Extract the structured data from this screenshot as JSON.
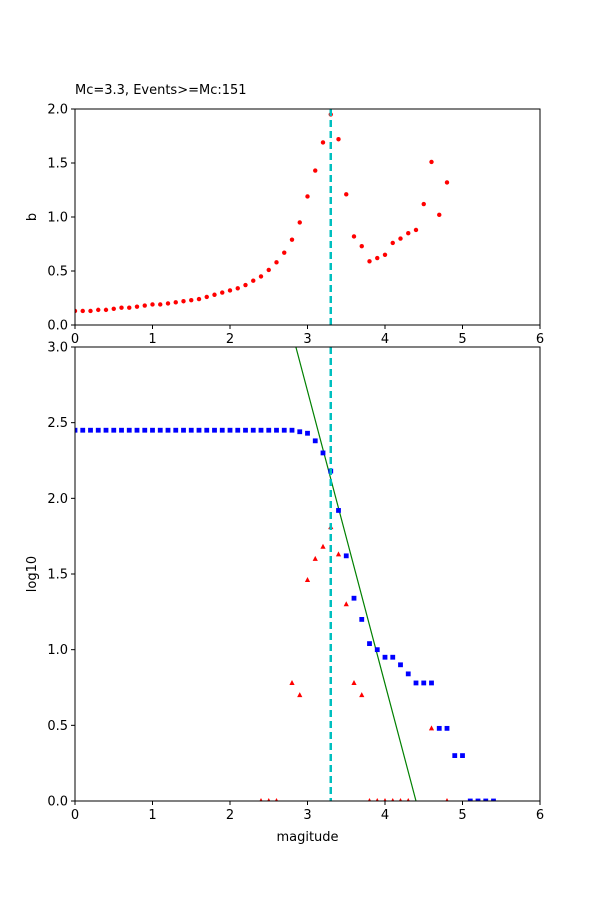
{
  "chart_data": [
    {
      "type": "scatter",
      "title": "Mc=3.3, Events>=Mc:151",
      "xlabel": "",
      "ylabel": "b",
      "xlim": [
        0,
        6
      ],
      "ylim": [
        0,
        2
      ],
      "xticks": [
        "0",
        "1",
        "2",
        "3",
        "4",
        "5",
        "6"
      ],
      "yticks": [
        "0.0",
        "0.5",
        "1.0",
        "1.5",
        "2.0"
      ],
      "grid": false,
      "colors": {
        "points": "#ff0000",
        "mc_line": "#00bfbf"
      },
      "mc_line": 3.3,
      "series": [
        {
          "marker": "circle",
          "x": [
            0.0,
            0.1,
            0.2,
            0.3,
            0.4,
            0.5,
            0.6,
            0.7,
            0.8,
            0.9,
            1.0,
            1.1,
            1.2,
            1.3,
            1.4,
            1.5,
            1.6,
            1.7,
            1.8,
            1.9,
            2.0,
            2.1,
            2.2,
            2.3,
            2.4,
            2.5,
            2.6,
            2.7,
            2.8,
            2.9,
            3.0,
            3.1,
            3.2,
            3.3,
            3.4,
            3.5,
            3.6,
            3.7,
            3.8,
            3.9,
            4.0,
            4.1,
            4.2,
            4.3,
            4.4,
            4.5,
            4.6,
            4.7,
            4.8
          ],
          "y": [
            0.13,
            0.13,
            0.13,
            0.14,
            0.14,
            0.15,
            0.16,
            0.16,
            0.17,
            0.18,
            0.19,
            0.19,
            0.2,
            0.21,
            0.22,
            0.23,
            0.24,
            0.26,
            0.28,
            0.3,
            0.32,
            0.34,
            0.37,
            0.41,
            0.45,
            0.51,
            0.58,
            0.67,
            0.79,
            0.95,
            1.19,
            1.43,
            1.69,
            1.95,
            1.72,
            1.21,
            0.82,
            0.73,
            0.59,
            0.62,
            0.65,
            0.76,
            0.8,
            0.85,
            0.88,
            1.12,
            1.51,
            1.02,
            1.32
          ]
        }
      ]
    },
    {
      "type": "scatter",
      "title": "",
      "xlabel": "magitude",
      "ylabel": "log10",
      "xlim": [
        0,
        6
      ],
      "ylim": [
        0,
        3
      ],
      "xticks": [
        "0",
        "1",
        "2",
        "3",
        "4",
        "5",
        "6"
      ],
      "yticks": [
        "0.0",
        "0.5",
        "1.0",
        "1.5",
        "2.0",
        "2.5",
        "3.0"
      ],
      "grid": false,
      "colors": {
        "cumulative": "#0000ff",
        "noncumulative": "#ff0000",
        "fit": "#008000",
        "mc_line": "#00bfbf"
      },
      "mc_line": 3.3,
      "fit_line": {
        "x": [
          2.85,
          4.4
        ],
        "y": [
          3.0,
          0.0
        ]
      },
      "series": [
        {
          "marker": "square",
          "x": [
            0.0,
            0.1,
            0.2,
            0.3,
            0.4,
            0.5,
            0.6,
            0.7,
            0.8,
            0.9,
            1.0,
            1.1,
            1.2,
            1.3,
            1.4,
            1.5,
            1.6,
            1.7,
            1.8,
            1.9,
            2.0,
            2.1,
            2.2,
            2.3,
            2.4,
            2.5,
            2.6,
            2.7,
            2.8,
            2.9,
            3.0,
            3.1,
            3.2,
            3.3,
            3.4,
            3.5,
            3.6,
            3.7,
            3.8,
            3.9,
            4.0,
            4.1,
            4.2,
            4.3,
            4.4,
            4.5,
            4.6,
            4.7,
            4.8,
            4.9,
            5.0,
            5.1,
            5.2,
            5.3,
            5.4
          ],
          "y": [
            2.45,
            2.45,
            2.45,
            2.45,
            2.45,
            2.45,
            2.45,
            2.45,
            2.45,
            2.45,
            2.45,
            2.45,
            2.45,
            2.45,
            2.45,
            2.45,
            2.45,
            2.45,
            2.45,
            2.45,
            2.45,
            2.45,
            2.45,
            2.45,
            2.45,
            2.45,
            2.45,
            2.45,
            2.45,
            2.44,
            2.43,
            2.38,
            2.3,
            2.18,
            1.92,
            1.62,
            1.34,
            1.2,
            1.04,
            1.0,
            0.95,
            0.95,
            0.9,
            0.84,
            0.78,
            0.78,
            0.78,
            0.48,
            0.48,
            0.3,
            0.3,
            0.0,
            0.0,
            0.0,
            0.0
          ]
        },
        {
          "marker": "triangle",
          "x": [
            2.4,
            2.5,
            2.6,
            2.8,
            2.9,
            3.0,
            3.1,
            3.2,
            3.3,
            3.4,
            3.5,
            3.6,
            3.7,
            3.8,
            3.9,
            4.0,
            4.1,
            4.2,
            4.3,
            4.6,
            4.8
          ],
          "y": [
            0.0,
            0.0,
            0.0,
            0.78,
            0.7,
            1.46,
            1.6,
            1.68,
            1.81,
            1.63,
            1.3,
            0.78,
            0.7,
            0.0,
            0.0,
            0.0,
            0.0,
            0.0,
            0.0,
            0.48,
            0.0
          ]
        }
      ]
    }
  ]
}
